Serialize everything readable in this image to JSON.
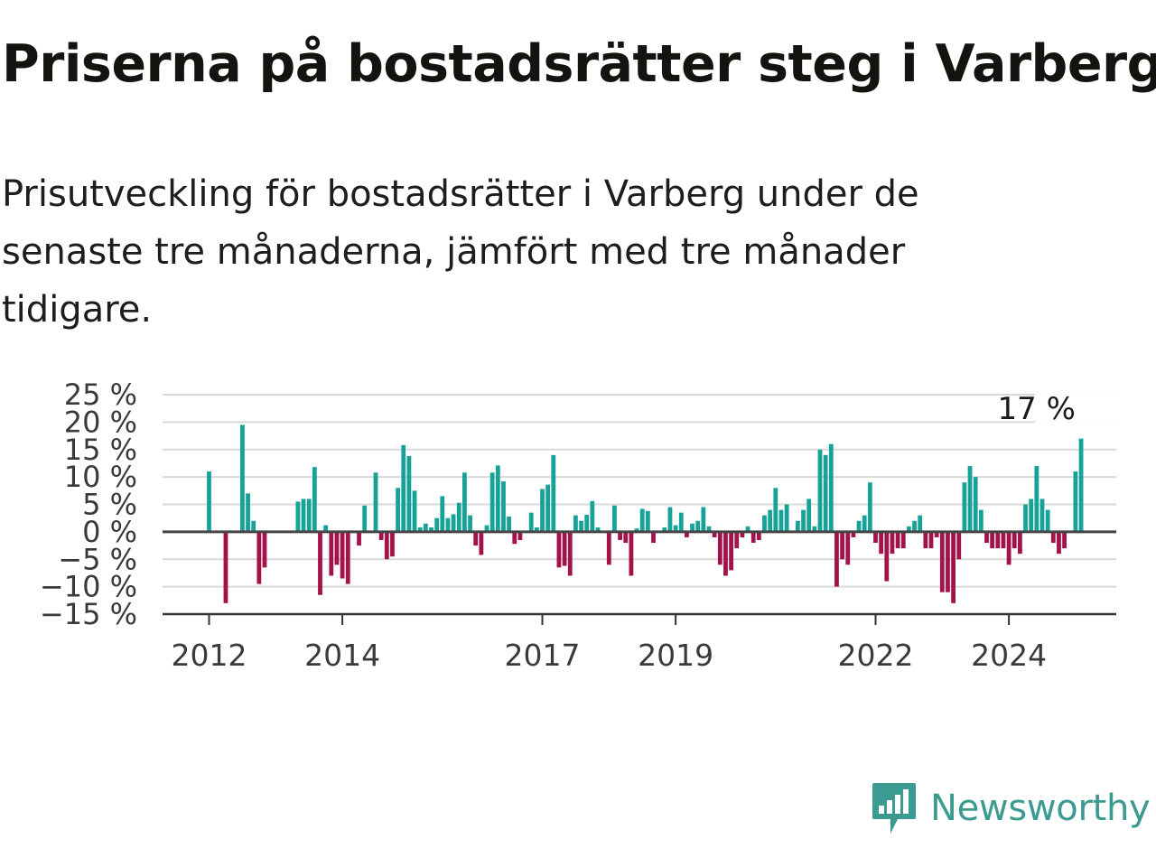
{
  "title": "Priserna på bostadsrätter steg i Varberg",
  "subtitle": "Prisutveckling för bostadsrätter i Varberg under de senaste tre månaderna, jämfört med tre månader tidigare.",
  "brand": {
    "name": "Newsworthy",
    "color": "#3b9b90",
    "icon": "newsworthy-logo-icon"
  },
  "colors": {
    "positive": "#17a298",
    "negative": "#a3124a",
    "grid": "#d9d9d9",
    "zero": "#444444"
  },
  "chart_data": {
    "type": "bar",
    "title": "",
    "xlabel": "",
    "ylabel": "",
    "ylim": [
      -15,
      25
    ],
    "yticks": [
      25,
      20,
      15,
      10,
      5,
      0,
      -5,
      -10,
      -15
    ],
    "ytick_labels": [
      "25 %",
      "20 %",
      "15 %",
      "10 %",
      "5 %",
      "0 %",
      "−5 %",
      "−10 %",
      "−15 %"
    ],
    "xticks": [
      "2012",
      "2014",
      "2017",
      "2019",
      "2022",
      "2024"
    ],
    "start": "2012-01",
    "callout": {
      "label": "17 %",
      "month": "2025-01",
      "value": 17
    },
    "grid": true,
    "legend": "none",
    "series": [
      {
        "values": [
          11,
          0,
          0,
          -13,
          0,
          0,
          19.5,
          7,
          2,
          -9.5,
          -6.5,
          0,
          0,
          0,
          0,
          0,
          5.5,
          6,
          6,
          11.8,
          -11.5,
          1.2,
          -8,
          -6,
          -8.5,
          -9.5,
          0,
          -2.5,
          4.8,
          0,
          10.8,
          -1.5,
          -5,
          -4.5,
          8,
          15.8,
          13.8,
          7.5,
          0.8,
          1.5,
          0.8,
          2.5,
          6.5,
          2.5,
          3.2,
          5.3,
          10.8,
          3,
          -2.5,
          -4.2,
          1.2,
          10.8,
          12.1,
          9.2,
          2.8,
          -2.2,
          -1.5,
          0,
          3.5,
          0.8,
          7.8,
          8.6,
          14,
          -6.5,
          -6.2,
          -8,
          3,
          2,
          3.1,
          5.6,
          0.8,
          0,
          -6,
          4.8,
          -1.5,
          -2,
          -8,
          0.6,
          4.2,
          3.8,
          -2,
          0,
          0.8,
          4.5,
          1.2,
          3.5,
          -1,
          1.5,
          2,
          4.5,
          1,
          -1,
          -6,
          -8,
          -7,
          -3,
          -1,
          1,
          -2,
          -1.5,
          3,
          4,
          8,
          4,
          5,
          0,
          2,
          4,
          6,
          1,
          15,
          14,
          16,
          -10,
          -5,
          -6,
          -1,
          2,
          3,
          9,
          -2,
          -4,
          -9,
          -4,
          -3,
          -3,
          1,
          2,
          3,
          -3,
          -3,
          -1,
          -11,
          -11,
          -13,
          -5,
          9,
          12,
          10,
          4,
          -2,
          -3,
          -3,
          -3,
          -6,
          -3,
          -4,
          5,
          6,
          12,
          6,
          4,
          -2,
          -4,
          -3,
          0,
          11,
          17
        ]
      }
    ]
  }
}
